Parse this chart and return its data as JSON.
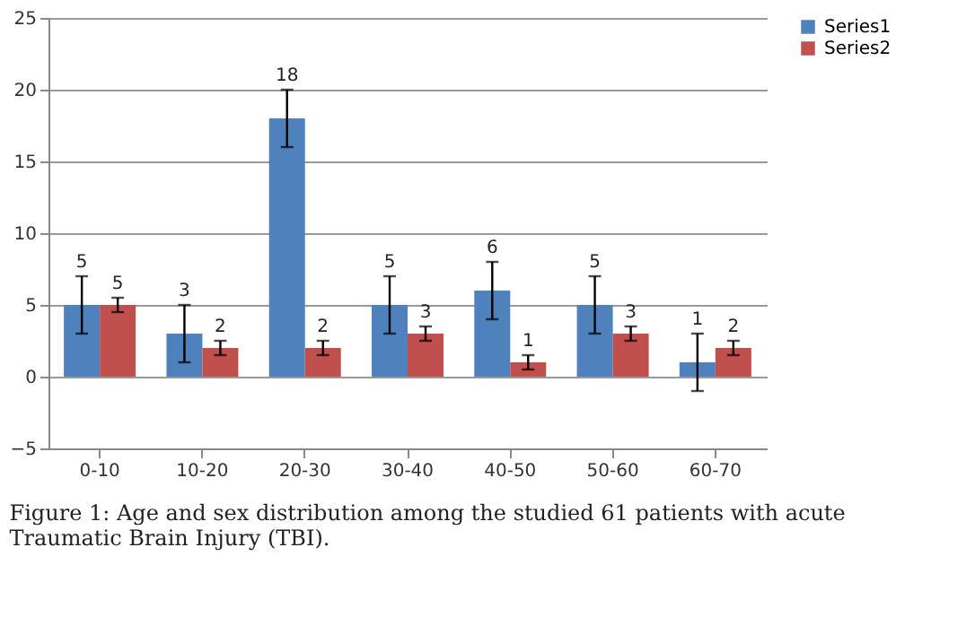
{
  "chart_data": {
    "type": "bar",
    "categories": [
      "0-10",
      "10-20",
      "20-30",
      "30-40",
      "40-50",
      "50-60",
      "60-70"
    ],
    "series": [
      {
        "name": "Series1",
        "color": "#4f81bd",
        "values": [
          5,
          3,
          18,
          5,
          6,
          5,
          1
        ],
        "errors": [
          2,
          2,
          2,
          2,
          2,
          2,
          2
        ]
      },
      {
        "name": "Series2",
        "color": "#c0504d",
        "values": [
          5,
          2,
          2,
          3,
          1,
          3,
          2
        ],
        "errors": [
          0.5,
          0.5,
          0.5,
          0.5,
          0.5,
          0.5,
          0.5
        ]
      }
    ],
    "ylim": [
      -5,
      25
    ],
    "yticks": [
      -5,
      0,
      5,
      10,
      15,
      20,
      25
    ],
    "grid": "y",
    "legend": "right",
    "data_labels": true,
    "annotations": [
      "Figure 1: Age and sex distribution among the studied 61 patients with acute Traumatic Brain Injury (TBI)."
    ]
  }
}
